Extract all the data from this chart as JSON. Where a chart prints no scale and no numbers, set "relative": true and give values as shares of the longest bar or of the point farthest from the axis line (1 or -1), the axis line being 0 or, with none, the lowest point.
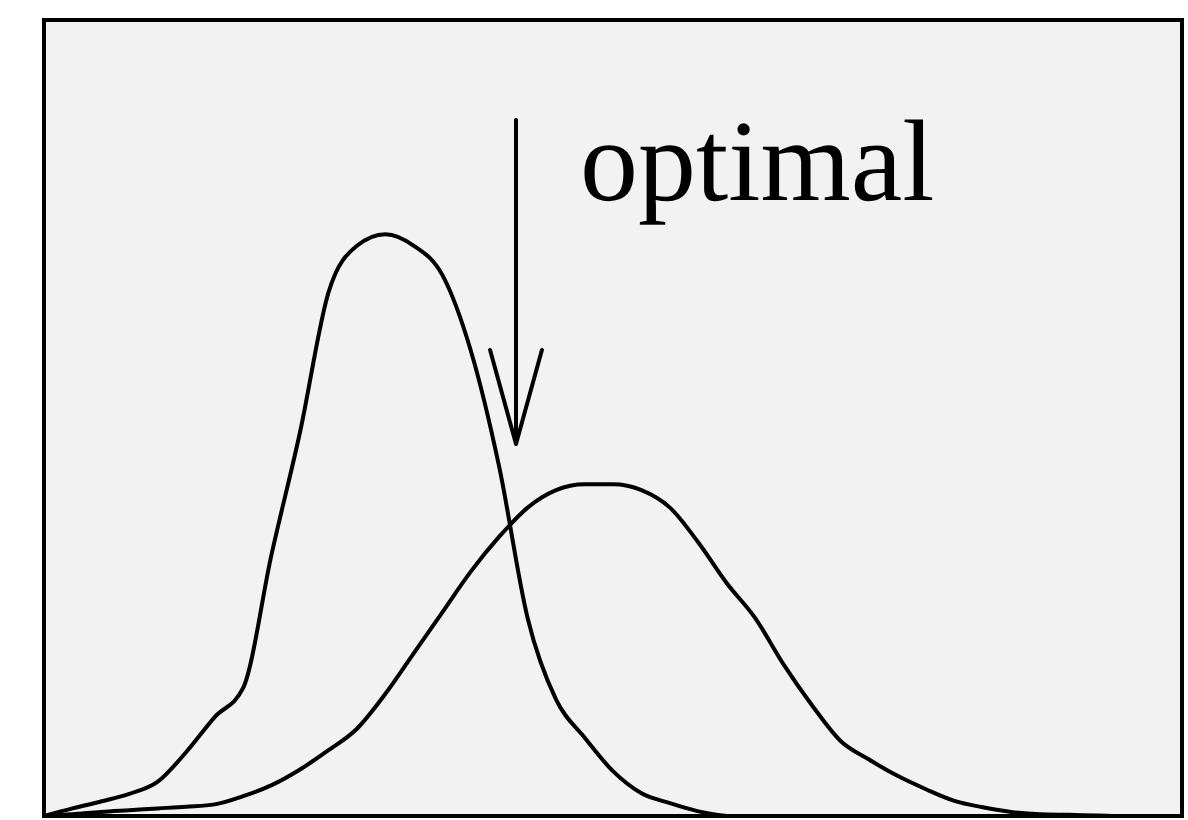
{
  "chart_data": {
    "type": "line",
    "relative": true,
    "categories": [
      null,
      null,
      null,
      null,
      null,
      null,
      null,
      null,
      null,
      null,
      null,
      null,
      null,
      null,
      null,
      null,
      null,
      null,
      null,
      null,
      null,
      null,
      null,
      null,
      null,
      null,
      null,
      null,
      null,
      null,
      null,
      null,
      null,
      null,
      null,
      null,
      null,
      null,
      null,
      null,
      null
    ],
    "series": [
      {
        "color": "#000000",
        "values": [
          0,
          0.013,
          0.025,
          0.038,
          0.059,
          0.11,
          0.17,
          0.22,
          0.45,
          0.66,
          0.9,
          0.98,
          1,
          0.98,
          0.93,
          0.8,
          0.6,
          0.34,
          0.2,
          0.135,
          0.077,
          0.039,
          0.022,
          0.008,
          0,
          null,
          null,
          null,
          null,
          null,
          null,
          null,
          null,
          null,
          null,
          null,
          null,
          null,
          null,
          null,
          null
        ]
      },
      {
        "color": "#000000",
        "values": [
          0,
          0.003,
          0.007,
          0.01,
          0.013,
          0.016,
          0.02,
          0.034,
          0.053,
          0.08,
          0.113,
          0.15,
          0.21,
          0.28,
          0.35,
          0.42,
          0.48,
          0.53,
          0.56,
          0.57,
          0.57,
          0.56,
          0.53,
          0.47,
          0.4,
          0.34,
          0.26,
          0.19,
          0.129,
          0.097,
          0.069,
          0.046,
          0.026,
          0.015,
          0.007,
          0.003,
          0.002,
          0.001,
          0,
          0,
          0
        ]
      }
    ],
    "annotations": [
      "optimal"
    ]
  }
}
